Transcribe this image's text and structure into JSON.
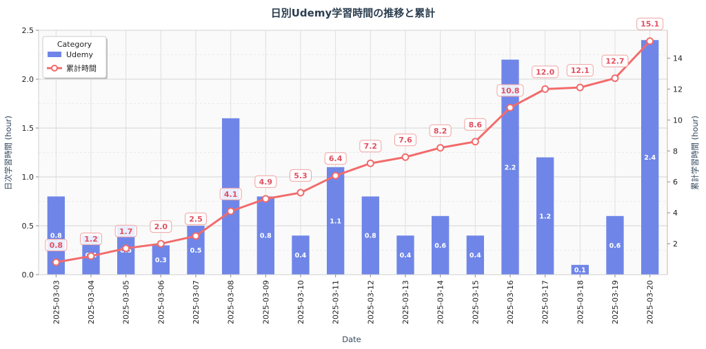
{
  "chart_data": {
    "type": "bar+line",
    "title": "日別Udemy学習時間の推移と累計",
    "xlabel": "Date",
    "ylabel_left": "日次学習時間 (hour)",
    "ylabel_right": "累計学習時間 (hour)",
    "categories": [
      "2025-03-03",
      "2025-03-04",
      "2025-03-05",
      "2025-03-06",
      "2025-03-07",
      "2025-03-08",
      "2025-03-09",
      "2025-03-10",
      "2025-03-11",
      "2025-03-12",
      "2025-03-13",
      "2025-03-14",
      "2025-03-15",
      "2025-03-16",
      "2025-03-17",
      "2025-03-18",
      "2025-03-19",
      "2025-03-20"
    ],
    "series": [
      {
        "name": "Udemy",
        "type": "bar",
        "axis": "left",
        "color": "#6f86e8",
        "values": [
          0.8,
          0.4,
          0.5,
          0.3,
          0.5,
          1.6,
          0.8,
          0.4,
          1.1,
          0.8,
          0.4,
          0.6,
          0.4,
          2.2,
          1.2,
          0.1,
          0.6,
          2.4
        ],
        "labels": [
          "0.8",
          "0.4",
          "0.5",
          "0.3",
          "0.5",
          "",
          "0.8",
          "0.4",
          "1.1",
          "0.8",
          "0.4",
          "0.6",
          "0.4",
          "2.2",
          "1.2",
          "0.1",
          "0.6",
          "2.4"
        ]
      },
      {
        "name": "累計時間",
        "type": "line",
        "axis": "right",
        "color": "#f26b6b",
        "values": [
          0.8,
          1.2,
          1.7,
          2.0,
          2.5,
          4.1,
          4.9,
          5.3,
          6.4,
          7.2,
          7.6,
          8.2,
          8.6,
          10.8,
          12.0,
          12.1,
          12.7,
          15.1
        ],
        "labels": [
          "0.8",
          "1.2",
          "1.7",
          "2.0",
          "2.5",
          "4.1",
          "4.9",
          "5.3",
          "6.4",
          "7.2",
          "7.6",
          "8.2",
          "8.6",
          "10.8",
          "12.0",
          "12.1",
          "12.7",
          "15.1"
        ]
      }
    ],
    "ylim_left": [
      0,
      2.5
    ],
    "yticks_left": [
      "0.0",
      "0.5",
      "1.0",
      "1.5",
      "2.0",
      "2.5"
    ],
    "ylim_right": [
      0,
      15.8
    ],
    "yticks_right": [
      "2",
      "4",
      "6",
      "8",
      "10",
      "12",
      "14"
    ],
    "grid": true,
    "legend": {
      "title": "Category",
      "position": "top-left",
      "items": [
        "Udemy",
        "累計時間"
      ]
    }
  }
}
